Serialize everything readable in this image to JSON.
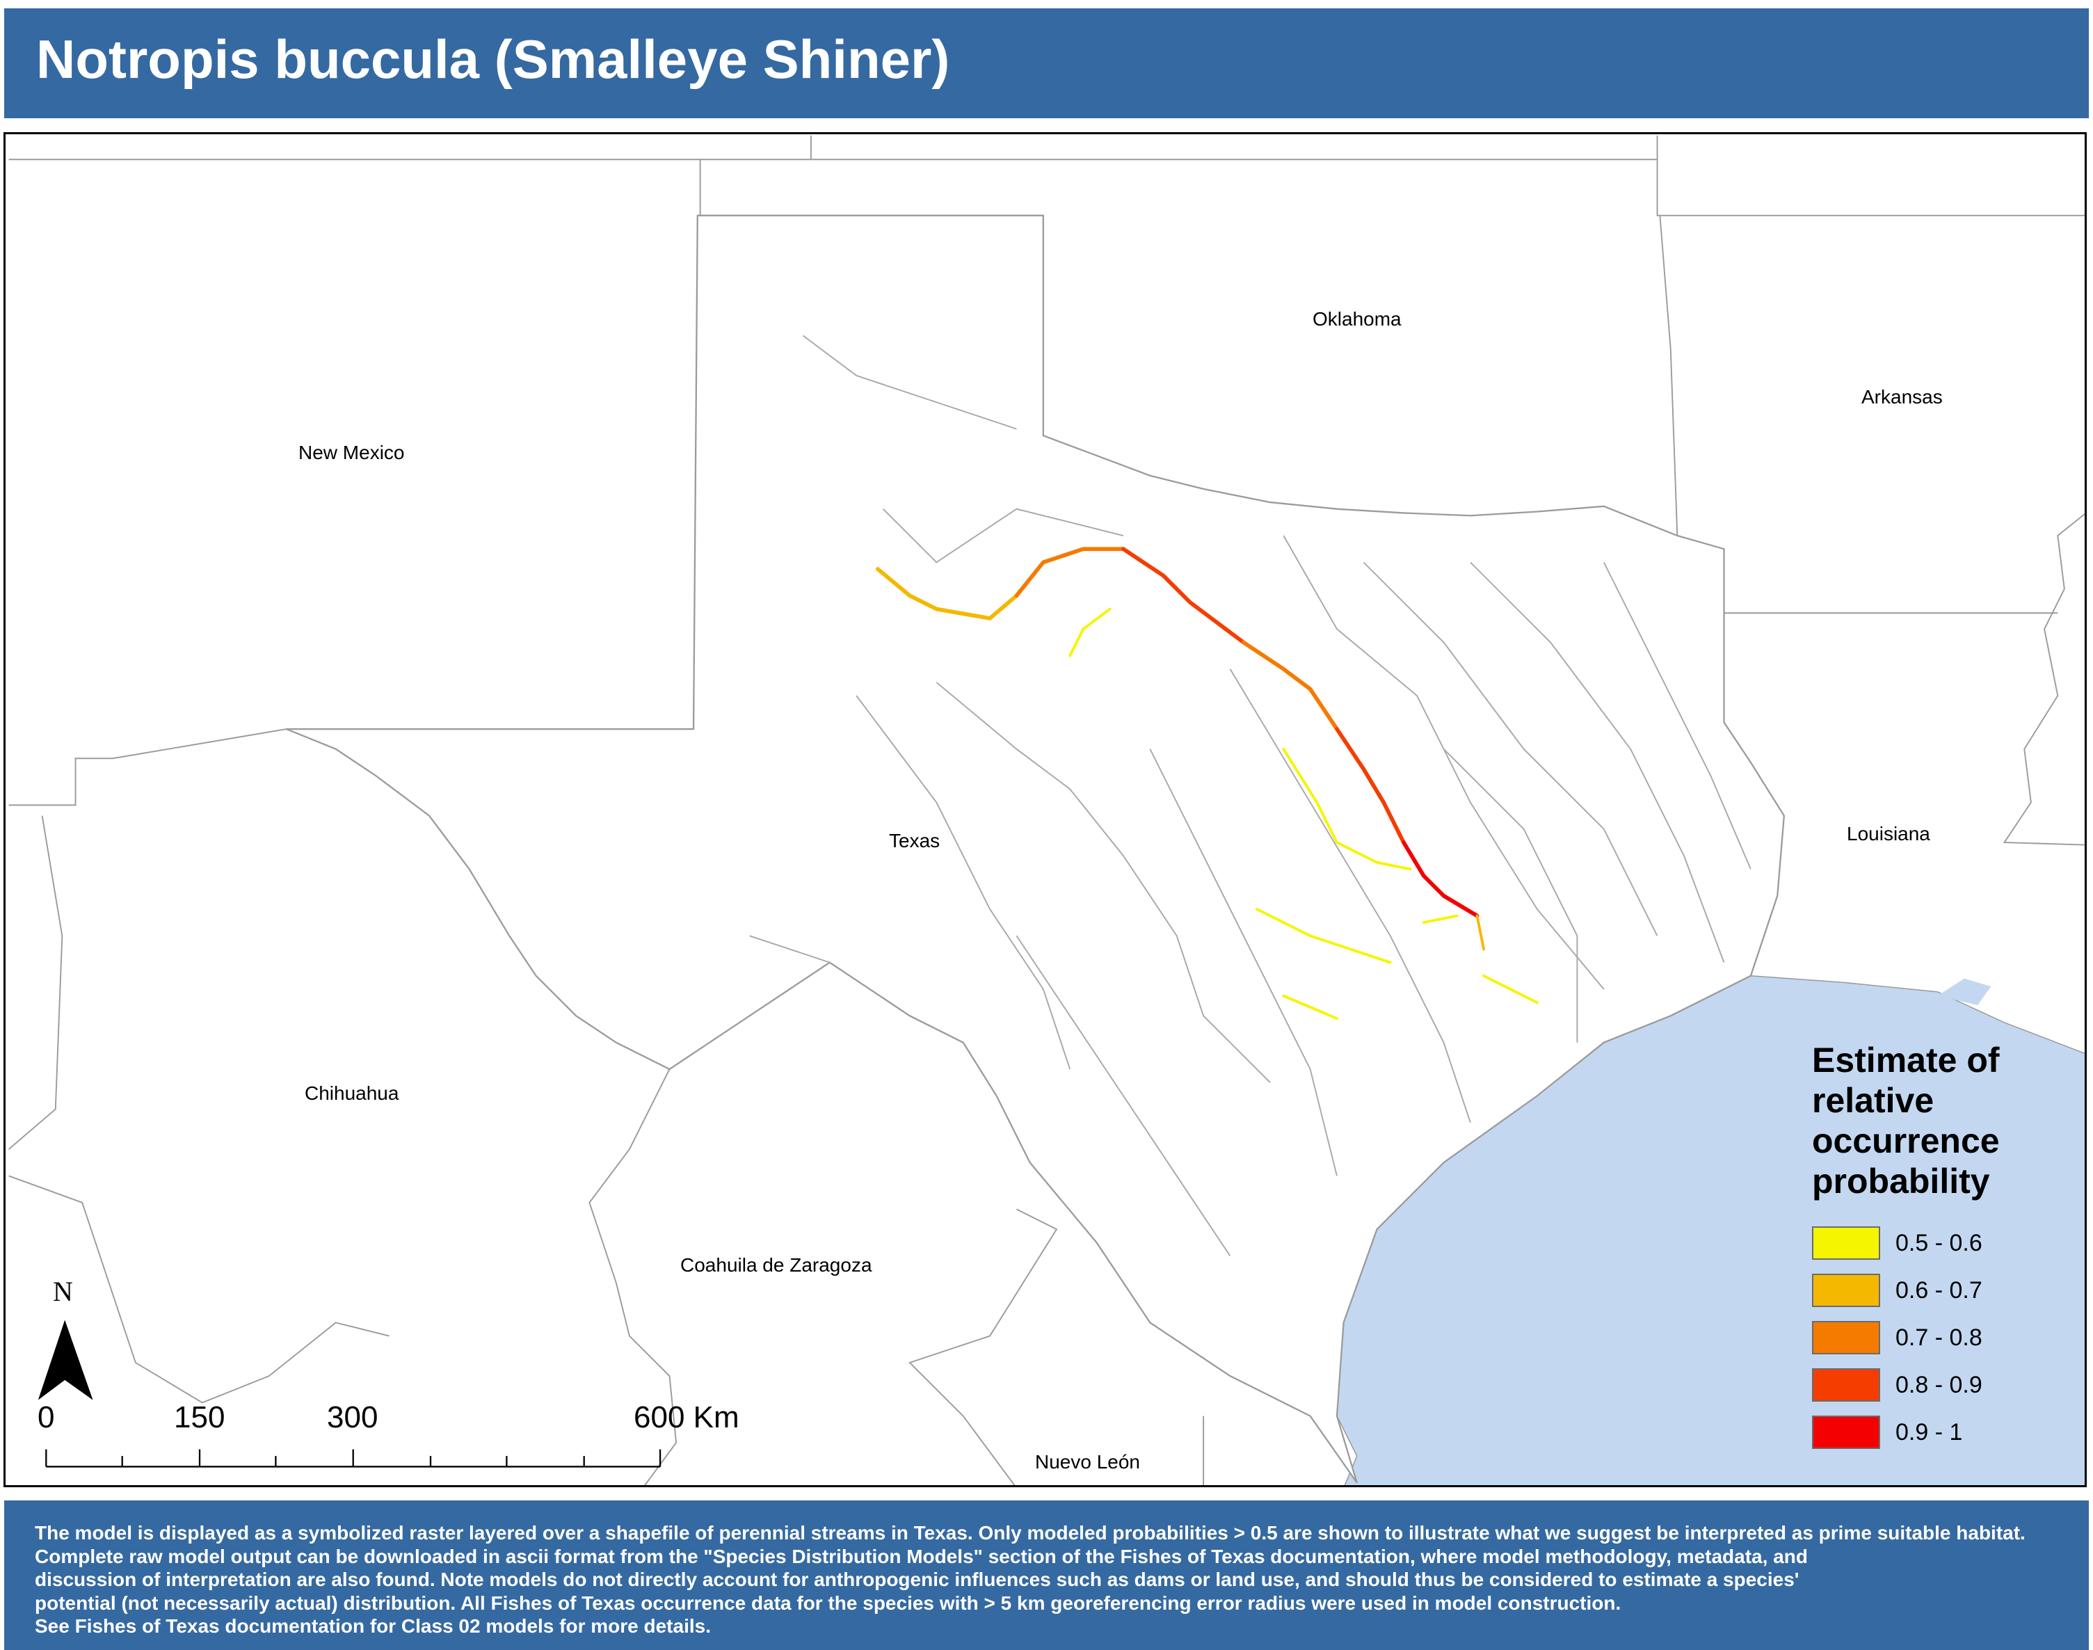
{
  "title": "Notropis buccula (Smalleye Shiner)",
  "map": {
    "labels": {
      "new_mexico": "New Mexico",
      "oklahoma": "Oklahoma",
      "arkansas": "Arkansas",
      "louisiana": "Louisiana",
      "texas": "Texas",
      "chihuahua": "Chihuahua",
      "coahuila": "Coahuila de Zaragoza",
      "nuevo_leon": "Nuevo León"
    },
    "north_arrow": "N",
    "scale_bar": {
      "labels": [
        "0",
        "150",
        "300",
        "600 Km"
      ]
    },
    "colors": {
      "water": "#c3d8f0",
      "borders": "#9b9b9b",
      "land": "#ffffff"
    }
  },
  "legend": {
    "title": "Estimate of relative occurrence probability",
    "items": [
      {
        "label": "0.5 - 0.6",
        "color": "#f5f500"
      },
      {
        "label": "0.6 - 0.7",
        "color": "#f5b800"
      },
      {
        "label": "0.7 - 0.8",
        "color": "#f57a00"
      },
      {
        "label": "0.8 - 0.9",
        "color": "#f53d00"
      },
      {
        "label": "0.9 - 1",
        "color": "#f50000"
      }
    ]
  },
  "footer": {
    "text": "The model is displayed as a symbolized raster layered over a shapefile of perennial streams in Texas. Only modeled probabilities > 0.5 are shown to illustrate what we suggest be interpreted as prime suitable habitat. Complete raw model output can be downloaded in ascii format from the \"Species Distribution Models\" section of the Fishes of Texas documentation, where model methodology, metadata, and\n discussion of interpretation are also found. Note models do not directly account for anthropogenic influences such as dams or land use, and should thus be considered to estimate a species'\npotential (not necessarily actual) distribution. All Fishes of Texas occurrence data for the species with > 5 km georeferencing error radius were used in model construction.\nSee Fishes of Texas documentation for Class 02 models for more details."
  }
}
